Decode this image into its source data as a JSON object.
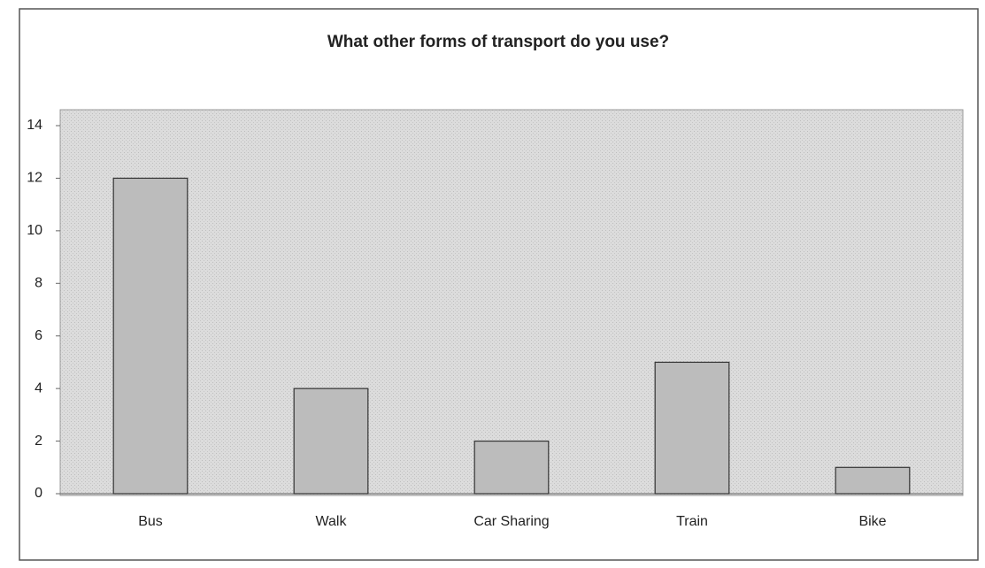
{
  "chart_data": {
    "type": "bar",
    "title": "What other forms of transport do you use?",
    "categories": [
      "Bus",
      "Walk",
      "Car Sharing",
      "Train",
      "Bike"
    ],
    "values": [
      12,
      4,
      2,
      5,
      1
    ],
    "color": "#bcbcbc",
    "ylim": [
      0,
      14
    ],
    "yticks": [
      0,
      2,
      4,
      6,
      8,
      10,
      12,
      14
    ],
    "grid": false
  }
}
